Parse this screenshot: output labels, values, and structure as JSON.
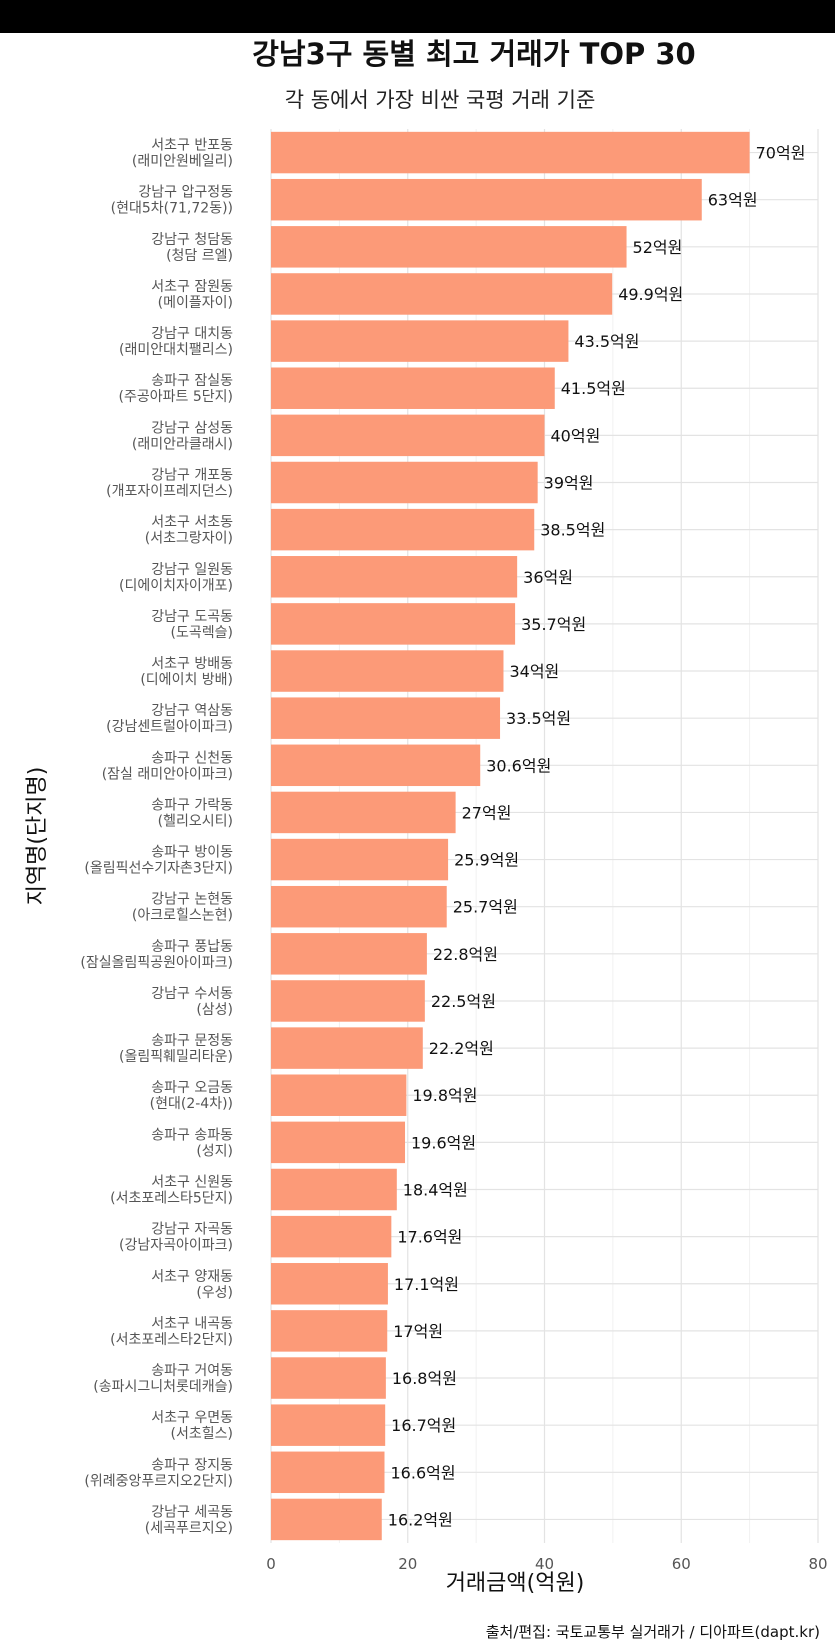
{
  "chart_data": {
    "type": "bar",
    "orientation": "horizontal",
    "title": "강남3구 동별 최고 거래가 TOP 30",
    "subtitle": "각 동에서 가장 비싼 국평 거래 기준",
    "xlabel": "거래금액(억원)",
    "ylabel": "지역명(단지명)",
    "source": "출처/편집: 국토교통부 실거래가 / 디아파트(dapt.kr)",
    "xlim": [
      0,
      80
    ],
    "xticks": [
      0,
      20,
      40,
      60,
      80
    ],
    "grid": true,
    "bar_color": "#FC9A78",
    "value_suffix": "억원",
    "categories": [
      [
        "서초구 반포동",
        "(래미안원베일리)"
      ],
      [
        "강남구 압구정동",
        "(현대5차(71,72동))"
      ],
      [
        "강남구 청담동",
        "(청담 르엘)"
      ],
      [
        "서초구 잠원동",
        "(메이플자이)"
      ],
      [
        "강남구 대치동",
        "(래미안대치팰리스)"
      ],
      [
        "송파구 잠실동",
        "(주공아파트 5단지)"
      ],
      [
        "강남구 삼성동",
        "(래미안라클래시)"
      ],
      [
        "강남구 개포동",
        "(개포자이프레지던스)"
      ],
      [
        "서초구 서초동",
        "(서초그랑자이)"
      ],
      [
        "강남구 일원동",
        "(디에이치자이개포)"
      ],
      [
        "강남구 도곡동",
        "(도곡렉슬)"
      ],
      [
        "서초구 방배동",
        "(디에이치 방배)"
      ],
      [
        "강남구 역삼동",
        "(강남센트럴아이파크)"
      ],
      [
        "송파구 신천동",
        "(잠실 래미안아이파크)"
      ],
      [
        "송파구 가락동",
        "(헬리오시티)"
      ],
      [
        "송파구 방이동",
        "(올림픽선수기자촌3단지)"
      ],
      [
        "강남구 논현동",
        "(아크로힐스논현)"
      ],
      [
        "송파구 풍납동",
        "(잠실올림픽공원아이파크)"
      ],
      [
        "강남구 수서동",
        "(삼성)"
      ],
      [
        "송파구 문정동",
        "(올림픽훼밀리타운)"
      ],
      [
        "송파구 오금동",
        "(현대(2-4차))"
      ],
      [
        "송파구 송파동",
        "(성지)"
      ],
      [
        "서초구 신원동",
        "(서초포레스타5단지)"
      ],
      [
        "강남구 자곡동",
        "(강남자곡아이파크)"
      ],
      [
        "서초구 양재동",
        "(우성)"
      ],
      [
        "서초구 내곡동",
        "(서초포레스타2단지)"
      ],
      [
        "송파구 거여동",
        "(송파시그니처롯데캐슬)"
      ],
      [
        "서초구 우면동",
        "(서초힐스)"
      ],
      [
        "송파구 장지동",
        "(위례중앙푸르지오2단지)"
      ],
      [
        "강남구 세곡동",
        "(세곡푸르지오)"
      ]
    ],
    "values": [
      70,
      63,
      52,
      49.9,
      43.5,
      41.5,
      40,
      39,
      38.5,
      36,
      35.7,
      34,
      33.5,
      30.6,
      27,
      25.9,
      25.7,
      22.8,
      22.5,
      22.2,
      19.8,
      19.6,
      18.4,
      17.6,
      17.1,
      17,
      16.8,
      16.7,
      16.6,
      16.2
    ],
    "data_labels": [
      "70억원",
      "63억원",
      "52억원",
      "49.9억원",
      "43.5억원",
      "41.5억원",
      "40억원",
      "39억원",
      "38.5억원",
      "36억원",
      "35.7억원",
      "34억원",
      "33.5억원",
      "30.6억원",
      "27억원",
      "25.9억원",
      "25.7억원",
      "22.8억원",
      "22.5억원",
      "22.2억원",
      "19.8억원",
      "19.6억원",
      "18.4억원",
      "17.6억원",
      "17.1억원",
      "17억원",
      "16.8억원",
      "16.7억원",
      "16.6억원",
      "16.2억원"
    ]
  }
}
